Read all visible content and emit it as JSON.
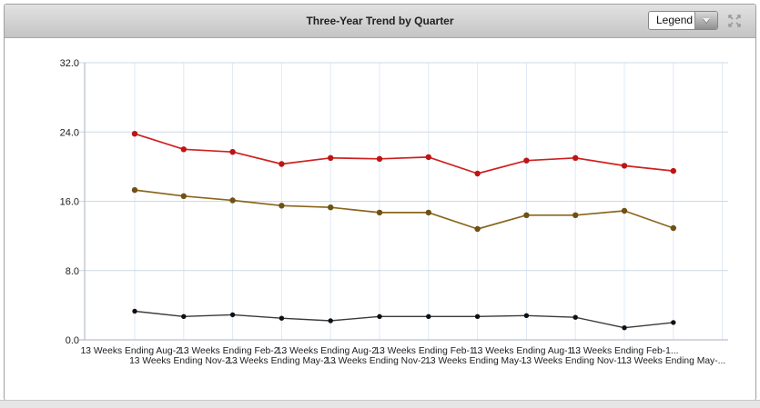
{
  "header": {
    "title": "Three-Year Trend by Quarter",
    "legend_selector": {
      "value": "Legend"
    }
  },
  "chart_data": {
    "type": "line",
    "title": "Three-Year Trend by Quarter",
    "legend": "collapsed",
    "grid": true,
    "x_tick_labels": [
      "13 Weeks Ending Aug-2...",
      "13 Weeks Ending Nov-2...",
      "13 Weeks Ending Feb-2...",
      "13 Weeks Ending May-2...",
      "13 Weeks Ending Aug-2...",
      "13 Weeks Ending Nov-2...",
      "13 Weeks Ending Feb-1...",
      "13 Weeks Ending May-...",
      "13 Weeks Ending Aug-1...",
      "13 Weeks Ending Nov-1...",
      "13 Weeks Ending Feb-1...",
      "13 Weeks Ending May-..."
    ],
    "y_axis": {
      "min": 0,
      "max": 32,
      "tick_interval": 8,
      "tick_labels": [
        "0.0",
        "8.0",
        "16.0",
        "24.0",
        "32.0"
      ]
    },
    "series": [
      {
        "id": "red-series",
        "color": "#cf2020",
        "marker_color": "#bd1414",
        "values": [
          23.8,
          22.0,
          21.7,
          20.3,
          21.0,
          20.9,
          21.1,
          19.2,
          20.7,
          21.0,
          20.1,
          19.5
        ]
      },
      {
        "id": "brown-series",
        "color": "#8a661e",
        "marker_color": "#6f5113",
        "values": [
          17.3,
          16.6,
          16.1,
          15.5,
          15.3,
          14.7,
          14.7,
          12.8,
          14.4,
          14.4,
          14.9,
          12.9
        ]
      },
      {
        "id": "black-series",
        "color": "#3a3a3a",
        "marker_color": "#101010",
        "values": [
          3.3,
          2.7,
          2.9,
          2.5,
          2.2,
          2.7,
          2.7,
          2.7,
          2.8,
          2.6,
          1.4,
          2.0
        ]
      }
    ],
    "grid_colors": {
      "horizontal": "#ccd9e6",
      "vertical": "#dde9f6",
      "axis": "#a9b2bc"
    }
  }
}
